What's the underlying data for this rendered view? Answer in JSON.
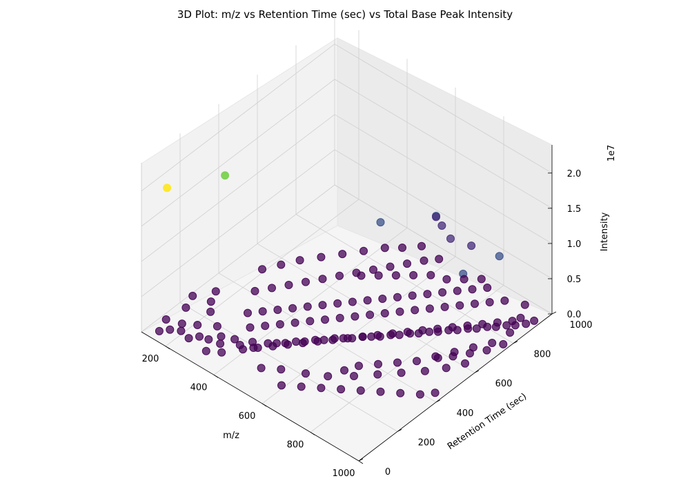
{
  "chart_data": {
    "type": "scatter",
    "projection": "3d",
    "title": "3D Plot: m/z vs Retention Time (sec) vs Total Base Peak Intensity",
    "xlabel": "m/z",
    "ylabel": "Retention Time (sec)",
    "zlabel": "Intensity",
    "z_offset_label": "1e7",
    "x_ticks": [
      "200",
      "400",
      "600",
      "800",
      "1000"
    ],
    "y_ticks": [
      "0",
      "200",
      "400",
      "600",
      "800",
      "1000"
    ],
    "z_ticks": [
      "0.0",
      "0.5",
      "1.0",
      "1.5",
      "2.0"
    ],
    "xlim": [
      100,
      1000
    ],
    "ylim": [
      0,
      1000
    ],
    "zlim": [
      0,
      2.4
    ],
    "colormap": "viridis",
    "grid": true,
    "point_groups": [
      {
        "intensity": 2.0,
        "color": "#fde725",
        "points": [
          [
            150,
            70
          ]
        ]
      },
      {
        "intensity": 1.55,
        "color": "#7ad151",
        "points": [
          [
            150,
            370
          ]
        ]
      },
      {
        "intensity": 0.6,
        "color": "#3b528b",
        "points": [
          [
            450,
            800
          ],
          [
            800,
            790
          ],
          [
            830,
            940
          ],
          [
            560,
            950
          ]
        ]
      },
      {
        "intensity": 0.4,
        "color": "#472d7b",
        "points": [
          [
            560,
            980
          ],
          [
            620,
            950
          ],
          [
            690,
            970
          ],
          [
            520,
            1000
          ]
        ]
      },
      {
        "intensity": 0.05,
        "color": "#440154",
        "points": [
          [
            150,
            30
          ],
          [
            170,
            60
          ],
          [
            130,
            90
          ],
          [
            200,
            80
          ],
          [
            180,
            110
          ],
          [
            240,
            70
          ],
          [
            260,
            100
          ],
          [
            220,
            140
          ],
          [
            290,
            110
          ],
          [
            310,
            150
          ],
          [
            330,
            120
          ],
          [
            350,
            170
          ],
          [
            380,
            160
          ],
          [
            400,
            200
          ],
          [
            420,
            180
          ],
          [
            440,
            230
          ],
          [
            460,
            250
          ],
          [
            480,
            270
          ],
          [
            500,
            300
          ],
          [
            520,
            320
          ],
          [
            540,
            350
          ],
          [
            560,
            370
          ],
          [
            580,
            400
          ],
          [
            600,
            420
          ],
          [
            620,
            440
          ],
          [
            640,
            470
          ],
          [
            660,
            490
          ],
          [
            680,
            510
          ],
          [
            700,
            540
          ],
          [
            720,
            560
          ],
          [
            740,
            590
          ],
          [
            760,
            610
          ],
          [
            780,
            640
          ],
          [
            800,
            660
          ],
          [
            820,
            690
          ],
          [
            840,
            710
          ],
          [
            860,
            740
          ],
          [
            880,
            760
          ],
          [
            900,
            790
          ],
          [
            920,
            810
          ],
          [
            940,
            840
          ],
          [
            960,
            860
          ],
          [
            980,
            890
          ],
          [
            990,
            920
          ],
          [
            300,
            300
          ],
          [
            330,
            340
          ],
          [
            360,
            380
          ],
          [
            390,
            420
          ],
          [
            420,
            460
          ],
          [
            450,
            500
          ],
          [
            480,
            540
          ],
          [
            510,
            580
          ],
          [
            540,
            620
          ],
          [
            570,
            660
          ],
          [
            600,
            700
          ],
          [
            630,
            740
          ],
          [
            660,
            780
          ],
          [
            690,
            820
          ],
          [
            720,
            860
          ],
          [
            750,
            900
          ],
          [
            780,
            940
          ],
          [
            350,
            250
          ],
          [
            380,
            290
          ],
          [
            410,
            330
          ],
          [
            440,
            370
          ],
          [
            470,
            410
          ],
          [
            500,
            450
          ],
          [
            530,
            490
          ],
          [
            560,
            530
          ],
          [
            590,
            570
          ],
          [
            620,
            610
          ],
          [
            650,
            650
          ],
          [
            680,
            690
          ],
          [
            710,
            730
          ],
          [
            740,
            770
          ],
          [
            770,
            810
          ],
          [
            800,
            850
          ],
          [
            830,
            890
          ],
          [
            860,
            930
          ],
          [
            400,
            150
          ],
          [
            430,
            190
          ],
          [
            460,
            230
          ],
          [
            490,
            270
          ],
          [
            520,
            310
          ],
          [
            550,
            350
          ],
          [
            580,
            390
          ],
          [
            610,
            430
          ],
          [
            640,
            470
          ],
          [
            670,
            510
          ],
          [
            700,
            550
          ],
          [
            730,
            590
          ],
          [
            760,
            630
          ],
          [
            790,
            670
          ],
          [
            820,
            710
          ],
          [
            850,
            750
          ],
          [
            880,
            790
          ],
          [
            910,
            830
          ],
          [
            940,
            870
          ],
          [
            250,
            400
          ],
          [
            280,
            450
          ],
          [
            310,
            500
          ],
          [
            340,
            550
          ],
          [
            370,
            600
          ],
          [
            400,
            650
          ],
          [
            430,
            700
          ],
          [
            460,
            750
          ],
          [
            490,
            800
          ],
          [
            520,
            850
          ],
          [
            550,
            900
          ],
          [
            580,
            940
          ],
          [
            600,
            100
          ],
          [
            650,
            140
          ],
          [
            700,
            180
          ],
          [
            750,
            220
          ],
          [
            800,
            260
          ],
          [
            850,
            300
          ],
          [
            900,
            340
          ],
          [
            950,
            380
          ],
          [
            980,
            420
          ],
          [
            500,
            120
          ],
          [
            550,
            160
          ],
          [
            620,
            200
          ],
          [
            680,
            240
          ],
          [
            740,
            300
          ],
          [
            790,
            360
          ],
          [
            840,
            420
          ],
          [
            890,
            480
          ],
          [
            930,
            540
          ],
          [
            960,
            600
          ],
          [
            200,
            500
          ],
          [
            230,
            560
          ],
          [
            260,
            620
          ],
          [
            300,
            680
          ],
          [
            340,
            740
          ],
          [
            380,
            800
          ],
          [
            420,
            860
          ],
          [
            460,
            900
          ],
          [
            500,
            950
          ],
          [
            700,
            300
          ],
          [
            720,
            350
          ],
          [
            760,
            400
          ],
          [
            800,
            450
          ],
          [
            840,
            500
          ],
          [
            870,
            560
          ],
          [
            900,
            620
          ],
          [
            930,
            680
          ],
          [
            960,
            740
          ],
          [
            320,
            60
          ],
          [
            360,
            90
          ],
          [
            270,
            180
          ],
          [
            210,
            220
          ],
          [
            180,
            260
          ],
          [
            160,
            310
          ],
          [
            140,
            180
          ],
          [
            120,
            240
          ],
          [
            660,
            880
          ],
          [
            700,
            920
          ],
          [
            740,
            960
          ],
          [
            610,
            860
          ],
          [
            570,
            820
          ],
          [
            530,
            780
          ],
          [
            490,
            740
          ],
          [
            450,
            700
          ],
          [
            880,
            560
          ],
          [
            910,
            600
          ],
          [
            940,
            650
          ],
          [
            970,
            700
          ],
          [
            990,
            760
          ],
          [
            970,
            820
          ],
          [
            950,
            900
          ],
          [
            920,
            960
          ]
        ]
      }
    ]
  }
}
